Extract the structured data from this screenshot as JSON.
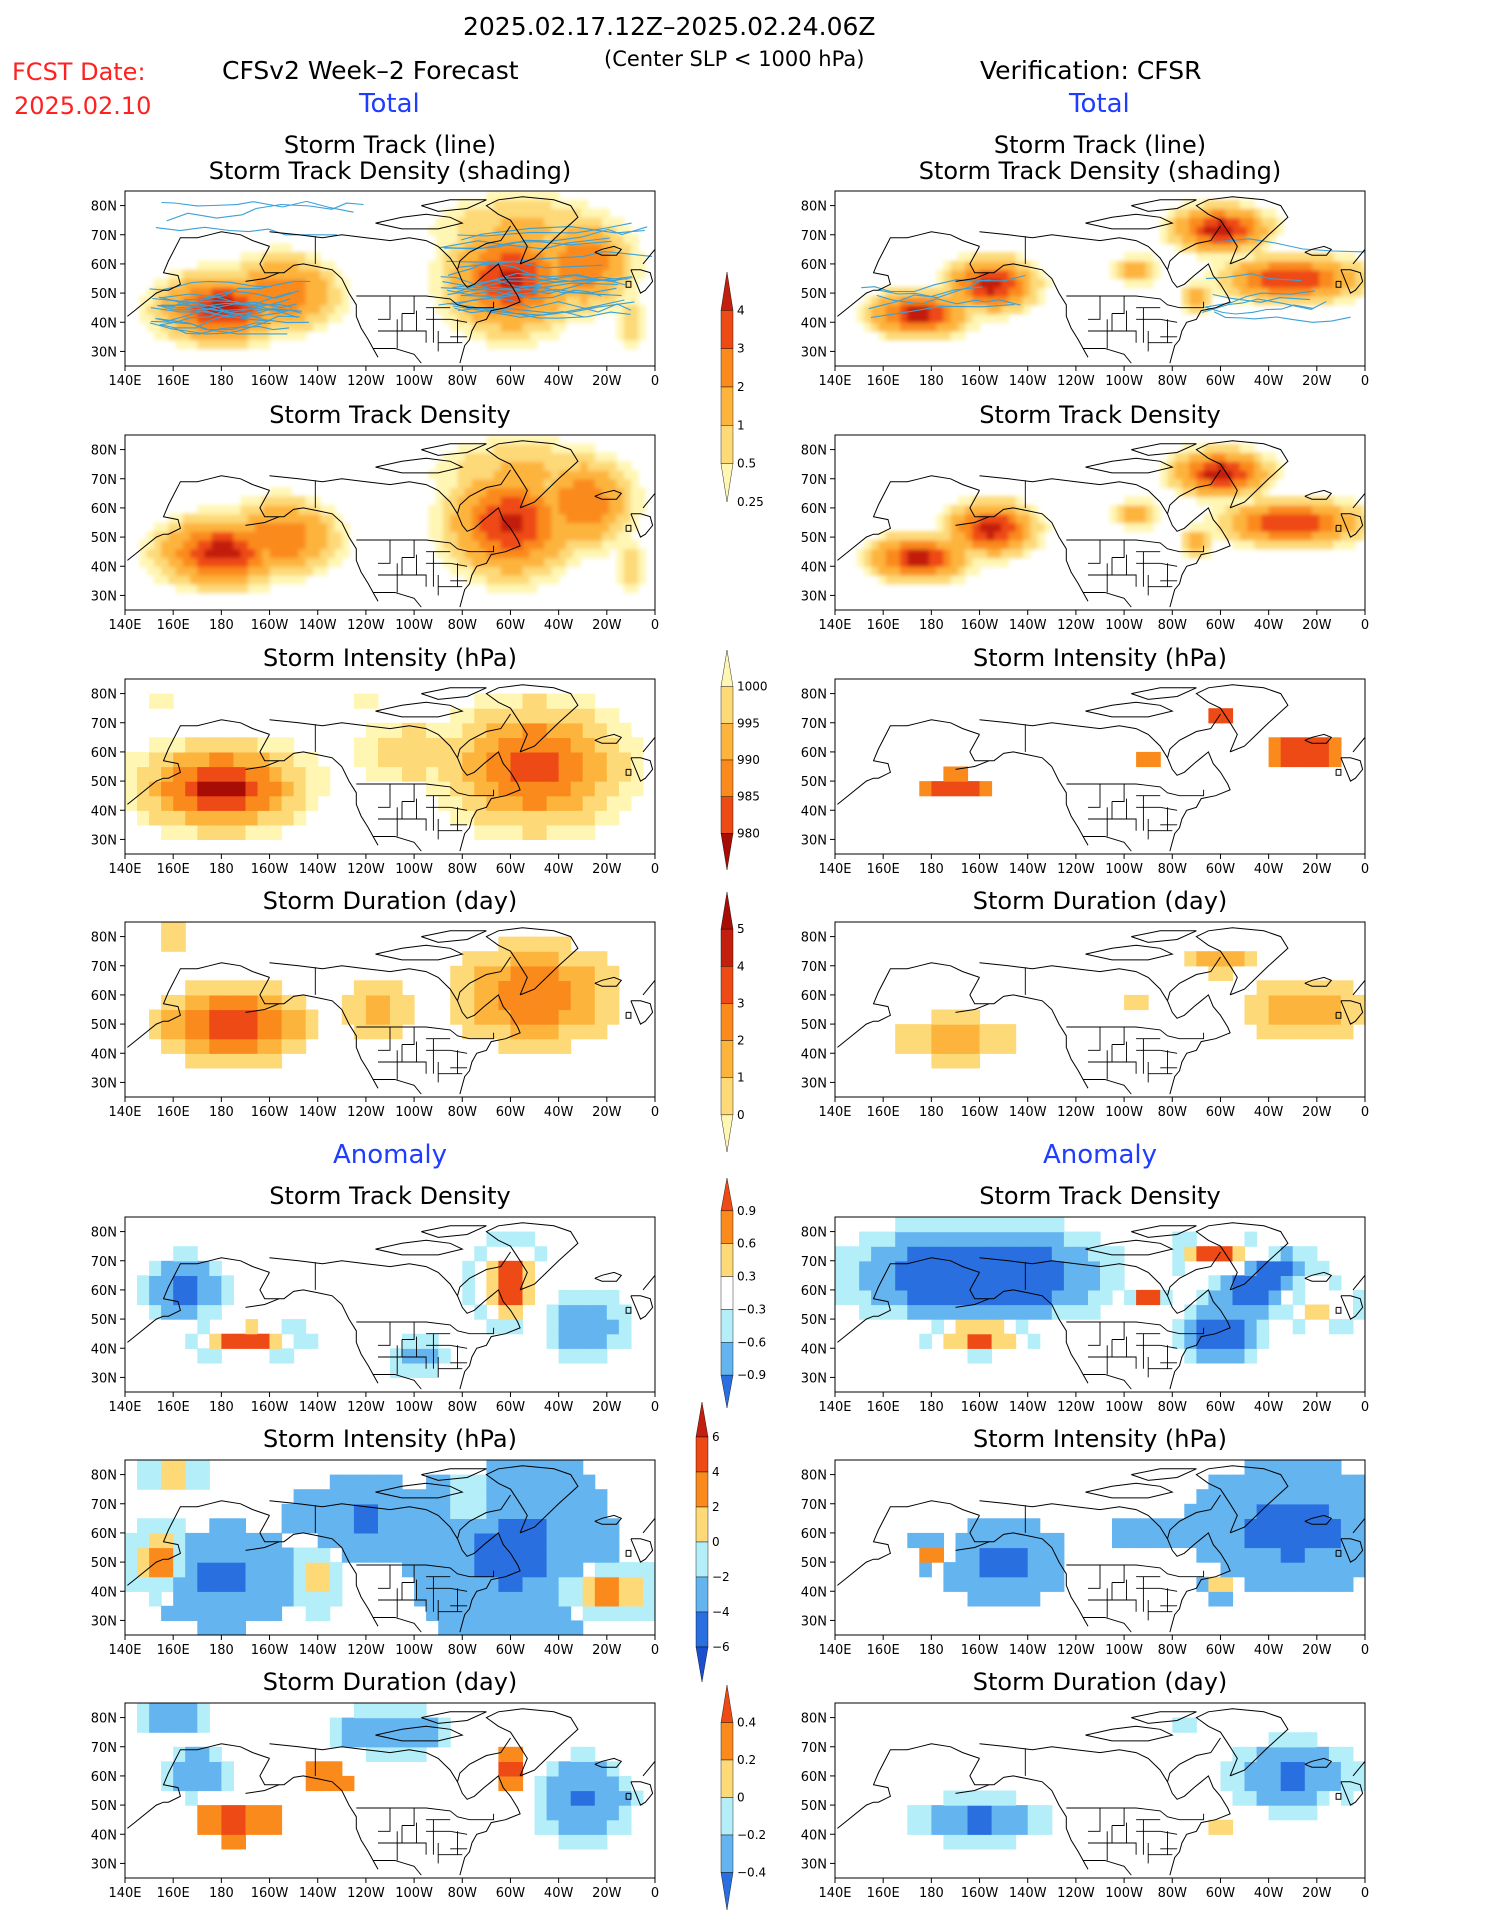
{
  "header": {
    "date_range": "2025.02.17.12Z–2025.02.24.06Z",
    "criterion": "(Center SLP < 1000 hPa)",
    "fcst_label": "FCST Date:",
    "fcst_date": "2025.02.10",
    "left_title": "CFSv2 Week–2 Forecast",
    "right_title": "Verification: CFSR"
  },
  "sections": {
    "total": "Total",
    "anomaly": "Anomaly"
  },
  "panel_titles": {
    "track_line": "Storm Track (line)",
    "track_shading": "Storm Track Density (shading)",
    "density": "Storm Track Density",
    "intensity": "Storm Intensity (hPa)",
    "duration": "Storm Duration (day)"
  },
  "axes": {
    "lon_labels": [
      "140E",
      "160E",
      "180",
      "160W",
      "140W",
      "120W",
      "100W",
      "80W",
      "60W",
      "40W",
      "20W",
      "0"
    ],
    "lat_labels": [
      "80N",
      "70N",
      "60N",
      "50N",
      "40N",
      "30N"
    ]
  },
  "colorbars": {
    "density_total": {
      "labels": [
        "4",
        "3",
        "2",
        "1",
        "0.5",
        "0.25"
      ],
      "colors": [
        "#c31f0e",
        "#ee4a15",
        "#fb8a1c",
        "#fdb43c",
        "#fdd978",
        "#fff6b4"
      ]
    },
    "intensity_total": {
      "labels": [
        "1000",
        "995",
        "990",
        "985",
        "980"
      ],
      "colors": [
        "#fff6b4",
        "#fdd978",
        "#fdb43c",
        "#fb8a1c",
        "#ee4a15",
        "#a80d05"
      ]
    },
    "duration_total": {
      "labels": [
        "5",
        "4",
        "3",
        "2",
        "1",
        "0"
      ],
      "colors": [
        "#a80d05",
        "#c31f0e",
        "#ee4a15",
        "#fb8a1c",
        "#fdb43c",
        "#fdd978",
        "#fff6b4"
      ]
    },
    "density_anom": {
      "labels": [
        "0.9",
        "0.6",
        "0.3",
        "−0.3",
        "−0.6",
        "−0.9"
      ],
      "colors": [
        "#ee4a15",
        "#fb8a1c",
        "#fdd978",
        "#ffffff",
        "#b3eef9",
        "#64b4f0",
        "#2a6fe0"
      ]
    },
    "intensity_anom": {
      "labels": [
        "6",
        "4",
        "2",
        "0",
        "−2",
        "−4",
        "−6"
      ],
      "colors": [
        "#c31f0e",
        "#ee4a15",
        "#fb8a1c",
        "#fdd978",
        "#b3eef9",
        "#64b4f0",
        "#2a6fe0",
        "#1b4fd0"
      ]
    },
    "duration_anom": {
      "labels": [
        "0.4",
        "0.2",
        "0",
        "−0.2",
        "−0.4"
      ],
      "colors": [
        "#ee4a15",
        "#fb8a1c",
        "#fdd978",
        "#b3eef9",
        "#64b4f0",
        "#2a6fe0"
      ]
    }
  }
}
